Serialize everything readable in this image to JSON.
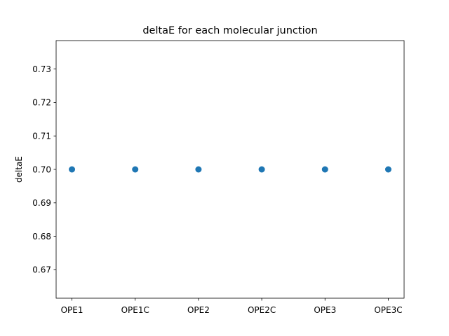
{
  "chart_data": {
    "type": "scatter",
    "title": "deltaE for each molecular junction",
    "xlabel": "",
    "ylabel": "deltaE",
    "categories": [
      "OPE1",
      "OPE1C",
      "OPE2",
      "OPE2C",
      "OPE3",
      "OPE3C"
    ],
    "series": [
      {
        "values": [
          0.7,
          0.7,
          0.7,
          0.7,
          0.7,
          0.7
        ]
      }
    ],
    "ylim": [
      0.6615,
      0.7385
    ],
    "yticks": [
      "0.67",
      "0.68",
      "0.69",
      "0.70",
      "0.71",
      "0.72",
      "0.73"
    ],
    "grid": false,
    "marker_color": "#1f77b4"
  }
}
